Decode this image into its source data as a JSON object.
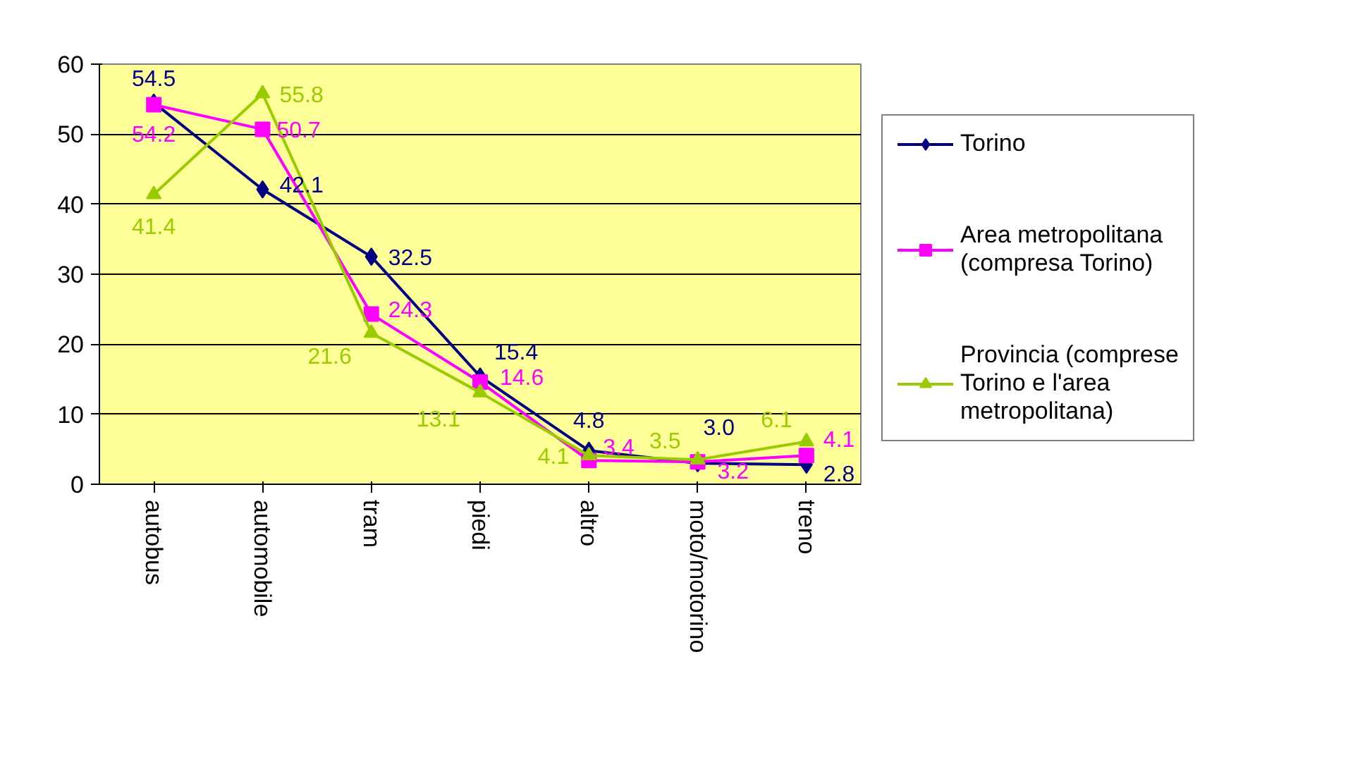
{
  "chart_data": {
    "type": "line",
    "categories": [
      "autobus",
      "automobile",
      "tram",
      "piedi",
      "altro",
      "moto/motorino",
      "treno"
    ],
    "series": [
      {
        "name": "Torino",
        "color": "#000080",
        "marker": "diamond",
        "values": [
          54.5,
          42.1,
          32.5,
          15.4,
          4.8,
          3.0,
          2.8
        ],
        "value_labels": [
          "54.5",
          "42.1",
          "32.5",
          "15.4",
          "4.8",
          "3.0",
          "2.8"
        ]
      },
      {
        "name": "Area metropolitana (compresa Torino)",
        "color": "#ff00ff",
        "marker": "square",
        "values": [
          54.2,
          50.7,
          24.3,
          14.6,
          3.4,
          3.2,
          4.1
        ],
        "value_labels": [
          "54.2",
          "50.7",
          "24.3",
          "14.6",
          "3.4",
          "3.2",
          "4.1"
        ]
      },
      {
        "name": "Provincia (comprese Torino e l'area metropolitana)",
        "color": "#99cc00",
        "marker": "triangle",
        "values": [
          41.4,
          55.8,
          21.6,
          13.1,
          4.1,
          3.5,
          6.1
        ],
        "value_labels": [
          "41.4",
          "55.8",
          "21.6",
          "13.1",
          "4.1",
          "3.5",
          "6.1"
        ]
      }
    ],
    "ylim": [
      0,
      60
    ],
    "yticks": [
      0,
      10,
      20,
      30,
      40,
      50,
      60
    ],
    "grid": "y",
    "legend": "right",
    "line_style": "solid"
  }
}
